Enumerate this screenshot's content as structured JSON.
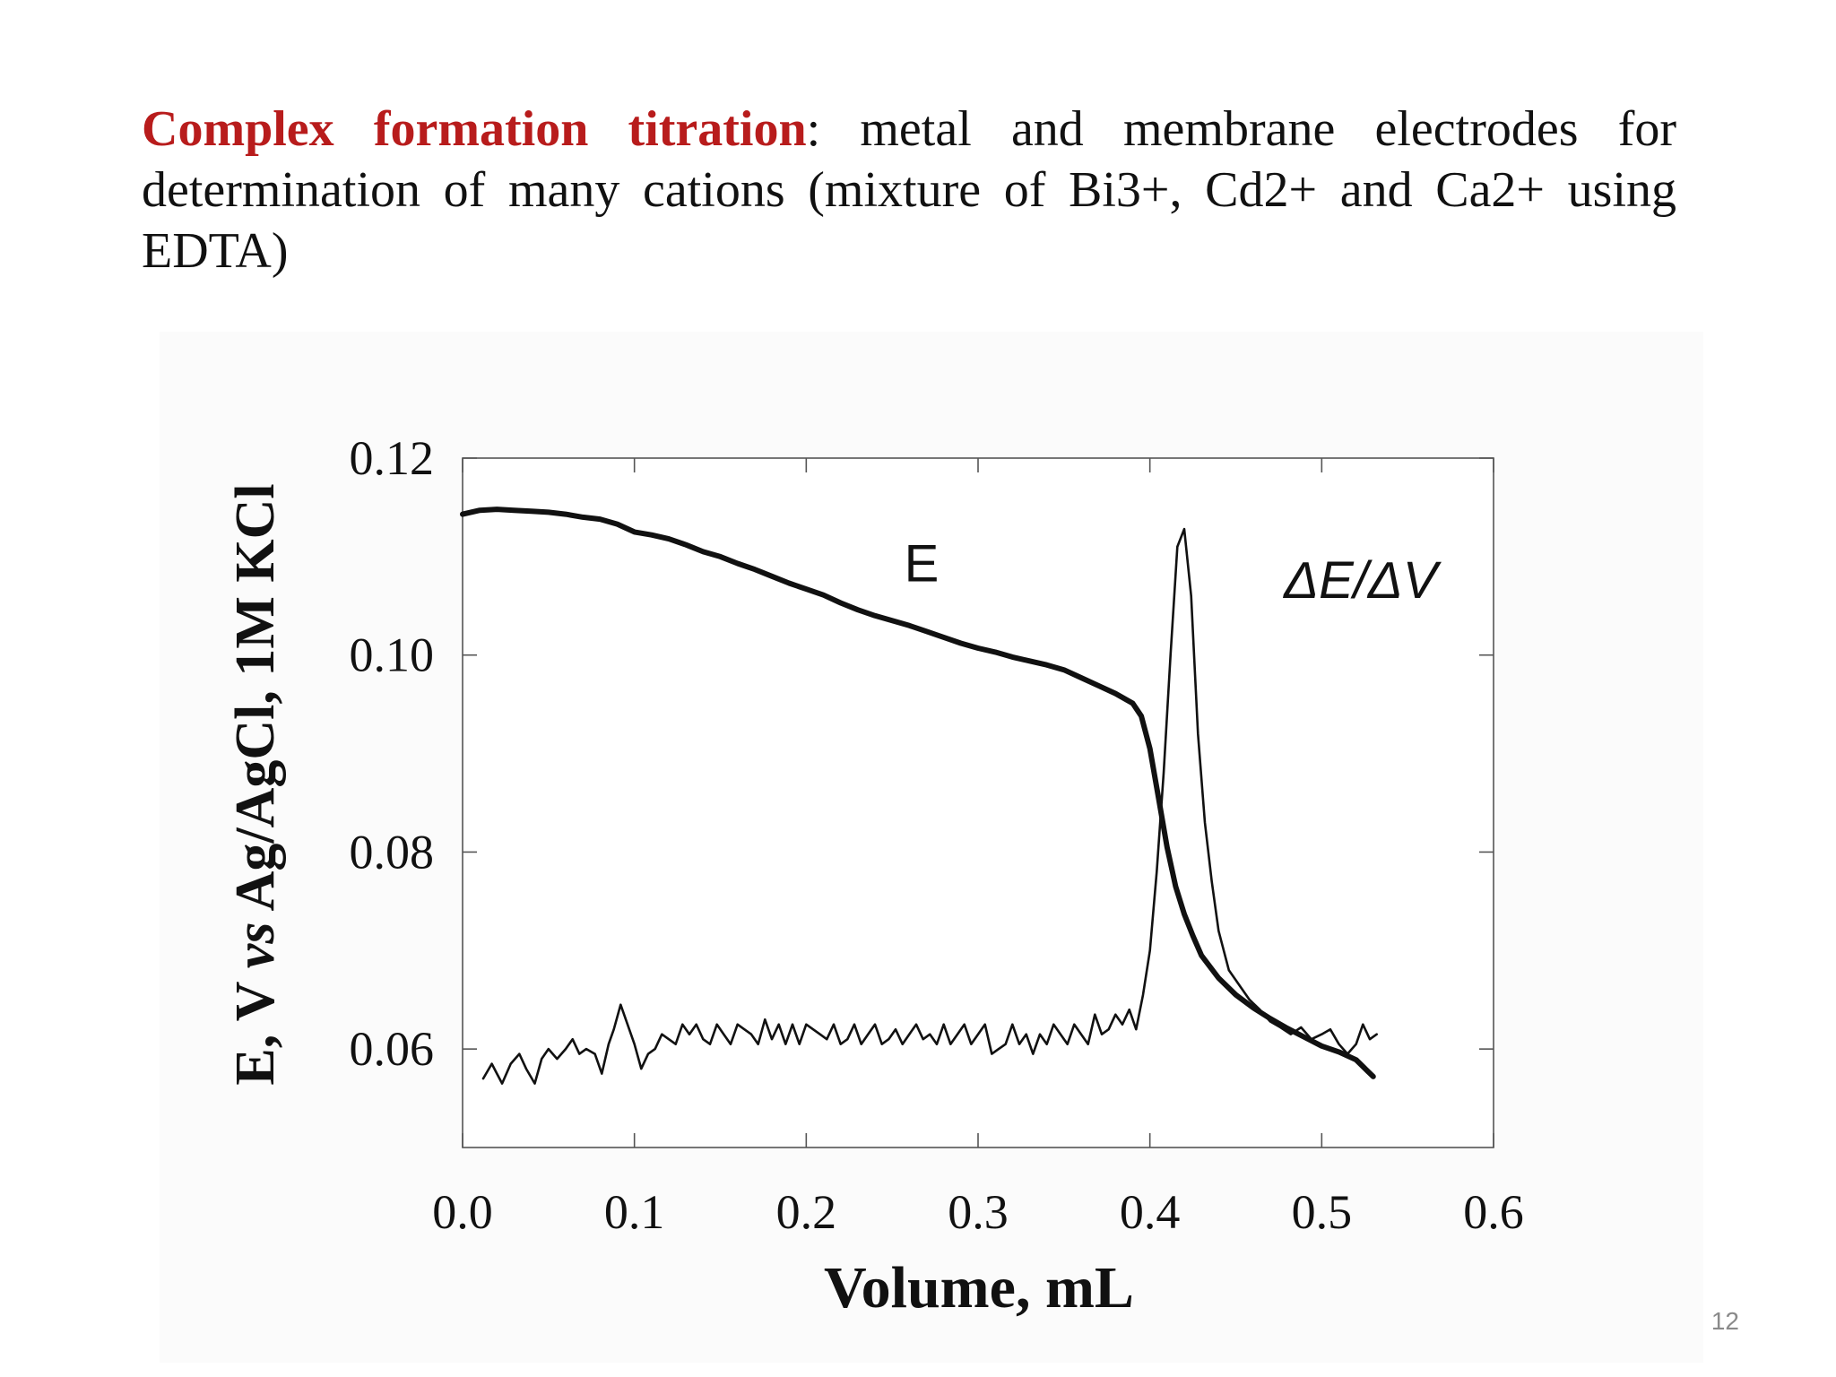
{
  "slide": {
    "title_bold": "Complex formation titration",
    "title_rest": ": metal and membrane electrodes for determination of many cations  (mixture of Bi3+, Cd2+ and Ca2+ using EDTA)",
    "page_number": "12",
    "accent_color": "#b81c1c"
  },
  "chart_data": {
    "type": "line",
    "xlabel": "Volume, mL",
    "ylabel": "E, V vs Ag/AgCl, 1M KCl",
    "ylabel_parts": [
      "E, V ",
      "vs",
      " Ag/AgCl, 1M KCl"
    ],
    "xlim": [
      0.0,
      0.6
    ],
    "ylim": [
      0.05,
      0.12
    ],
    "x_ticks": [
      "0.0",
      "0.1",
      "0.2",
      "0.3",
      "0.4",
      "0.5",
      "0.6"
    ],
    "y_ticks": [
      "0.06",
      "0.08",
      "0.10",
      "0.12"
    ],
    "y_tick_values": [
      0.06,
      0.08,
      0.1,
      0.12
    ],
    "grid": false,
    "series": [
      {
        "name": "E",
        "style": "thick",
        "x": [
          0.0,
          0.01,
          0.02,
          0.03,
          0.04,
          0.05,
          0.06,
          0.07,
          0.08,
          0.09,
          0.1,
          0.11,
          0.12,
          0.13,
          0.14,
          0.15,
          0.16,
          0.17,
          0.18,
          0.19,
          0.2,
          0.21,
          0.22,
          0.23,
          0.24,
          0.25,
          0.26,
          0.27,
          0.28,
          0.29,
          0.3,
          0.31,
          0.32,
          0.33,
          0.34,
          0.35,
          0.36,
          0.37,
          0.38,
          0.39,
          0.395,
          0.4,
          0.405,
          0.41,
          0.415,
          0.42,
          0.425,
          0.43,
          0.44,
          0.45,
          0.46,
          0.47,
          0.48,
          0.49,
          0.5,
          0.51,
          0.52,
          0.53
        ],
        "y": [
          0.1143,
          0.1147,
          0.1148,
          0.1147,
          0.1146,
          0.1145,
          0.1143,
          0.114,
          0.1138,
          0.1133,
          0.1125,
          0.1122,
          0.1118,
          0.1112,
          0.1105,
          0.11,
          0.1093,
          0.1087,
          0.108,
          0.1073,
          0.1067,
          0.1061,
          0.1053,
          0.1046,
          0.104,
          0.1035,
          0.103,
          0.1024,
          0.1018,
          0.1012,
          0.1007,
          0.1003,
          0.0998,
          0.0994,
          0.099,
          0.0985,
          0.0977,
          0.0969,
          0.0961,
          0.0951,
          0.0938,
          0.0905,
          0.0855,
          0.0805,
          0.0765,
          0.0737,
          0.0715,
          0.0695,
          0.0672,
          0.0655,
          0.0642,
          0.0631,
          0.0621,
          0.0612,
          0.0603,
          0.0597,
          0.0589,
          0.0572
        ]
      },
      {
        "name": "ΔE/ΔV",
        "style": "thin",
        "x": [
          0.012,
          0.017,
          0.02,
          0.023,
          0.028,
          0.033,
          0.037,
          0.042,
          0.046,
          0.05,
          0.055,
          0.06,
          0.064,
          0.068,
          0.072,
          0.077,
          0.081,
          0.085,
          0.088,
          0.092,
          0.096,
          0.1,
          0.104,
          0.108,
          0.112,
          0.116,
          0.12,
          0.124,
          0.128,
          0.132,
          0.136,
          0.14,
          0.144,
          0.148,
          0.152,
          0.156,
          0.16,
          0.164,
          0.168,
          0.172,
          0.176,
          0.18,
          0.184,
          0.188,
          0.192,
          0.196,
          0.2,
          0.204,
          0.208,
          0.212,
          0.216,
          0.22,
          0.224,
          0.228,
          0.232,
          0.236,
          0.24,
          0.244,
          0.248,
          0.252,
          0.256,
          0.26,
          0.264,
          0.268,
          0.272,
          0.276,
          0.28,
          0.284,
          0.288,
          0.292,
          0.296,
          0.3,
          0.304,
          0.308,
          0.312,
          0.316,
          0.32,
          0.324,
          0.328,
          0.332,
          0.336,
          0.34,
          0.344,
          0.348,
          0.352,
          0.356,
          0.36,
          0.364,
          0.368,
          0.372,
          0.376,
          0.38,
          0.384,
          0.388,
          0.392,
          0.396,
          0.4,
          0.404,
          0.408,
          0.412,
          0.416,
          0.42,
          0.424,
          0.428,
          0.432,
          0.436,
          0.44,
          0.446,
          0.452,
          0.458,
          0.464,
          0.47,
          0.476,
          0.482,
          0.488,
          0.494,
          0.5,
          0.505,
          0.51,
          0.515,
          0.52,
          0.524,
          0.528,
          0.532
        ],
        "y": [
          0.057,
          0.0585,
          0.0575,
          0.0565,
          0.0585,
          0.0595,
          0.058,
          0.0565,
          0.059,
          0.06,
          0.059,
          0.06,
          0.061,
          0.0595,
          0.06,
          0.0595,
          0.0575,
          0.0605,
          0.062,
          0.0645,
          0.0625,
          0.0605,
          0.058,
          0.0595,
          0.06,
          0.0615,
          0.061,
          0.0605,
          0.0625,
          0.0615,
          0.0625,
          0.061,
          0.0605,
          0.0625,
          0.0615,
          0.0605,
          0.0625,
          0.062,
          0.0615,
          0.0605,
          0.063,
          0.061,
          0.0625,
          0.0605,
          0.0625,
          0.0605,
          0.0625,
          0.062,
          0.0615,
          0.061,
          0.0625,
          0.0605,
          0.061,
          0.0625,
          0.0605,
          0.0615,
          0.0625,
          0.0605,
          0.061,
          0.062,
          0.0605,
          0.0615,
          0.0625,
          0.061,
          0.0615,
          0.0605,
          0.0625,
          0.0605,
          0.0615,
          0.0625,
          0.0605,
          0.0615,
          0.0625,
          0.0595,
          0.06,
          0.0605,
          0.0625,
          0.0605,
          0.0615,
          0.0595,
          0.0615,
          0.0605,
          0.0625,
          0.0615,
          0.0605,
          0.0625,
          0.0615,
          0.0605,
          0.0635,
          0.0615,
          0.062,
          0.0635,
          0.0625,
          0.064,
          0.062,
          0.0655,
          0.07,
          0.078,
          0.088,
          0.1,
          0.111,
          0.1128,
          0.106,
          0.092,
          0.083,
          0.077,
          0.072,
          0.068,
          0.0665,
          0.065,
          0.064,
          0.0628,
          0.0622,
          0.0615,
          0.0622,
          0.061,
          0.0615,
          0.062,
          0.0605,
          0.0595,
          0.0605,
          0.0625,
          0.061,
          0.0615
        ]
      }
    ],
    "labels": [
      {
        "text": "E",
        "x": 0.257,
        "y": 0.1075
      },
      {
        "text": "ΔE/ΔV",
        "x": 0.478,
        "y": 0.1058
      }
    ]
  }
}
